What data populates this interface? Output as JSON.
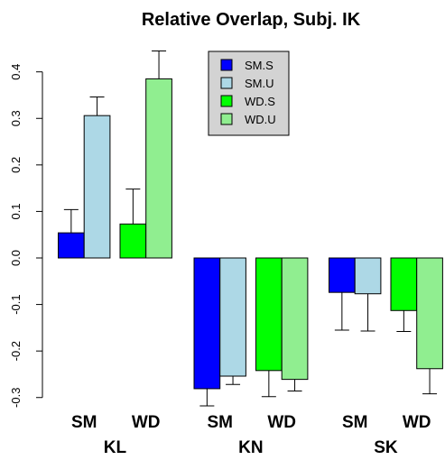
{
  "chart_data": {
    "type": "bar",
    "title": "Relative Overlap, Subj. IK",
    "xlabel": "",
    "ylabel": "",
    "ylim": [
      -0.33,
      0.46
    ],
    "yticks": [
      -0.3,
      -0.2,
      -0.1,
      0.0,
      0.1,
      0.2,
      0.3,
      0.4
    ],
    "ytick_labels": [
      "-0.3",
      "-0.2",
      "-0.1",
      "0.0",
      "0.1",
      "0.2",
      "0.3",
      "0.4"
    ],
    "groups": [
      "KL",
      "KN",
      "SK"
    ],
    "subgroups": [
      "SM",
      "WD"
    ],
    "series": [
      {
        "name": "SM.S",
        "color": "#0000FF",
        "subgroup": "SM",
        "values": [
          0.054,
          -0.281,
          -0.074
        ],
        "err_upper": [
          0.104,
          null,
          null
        ],
        "err_lower": [
          null,
          -0.318,
          -0.155
        ]
      },
      {
        "name": "SM.U",
        "color": "#ADD8E6",
        "subgroup": "SM",
        "values": [
          0.306,
          -0.254,
          -0.077
        ],
        "err_upper": [
          0.346,
          null,
          null
        ],
        "err_lower": [
          null,
          -0.272,
          -0.157
        ]
      },
      {
        "name": "WD.S",
        "color": "#00FF00",
        "subgroup": "WD",
        "values": [
          0.073,
          -0.242,
          -0.113
        ],
        "err_upper": [
          0.148,
          null,
          null
        ],
        "err_lower": [
          null,
          -0.298,
          -0.158
        ]
      },
      {
        "name": "WD.U",
        "color": "#90EE90",
        "subgroup": "WD",
        "values": [
          0.385,
          -0.261,
          -0.238
        ],
        "err_upper": [
          0.445,
          null,
          null
        ],
        "err_lower": [
          null,
          -0.286,
          -0.292
        ]
      }
    ],
    "legend": {
      "position": "top-center",
      "background": "#D3D3D3"
    },
    "grid": false
  }
}
